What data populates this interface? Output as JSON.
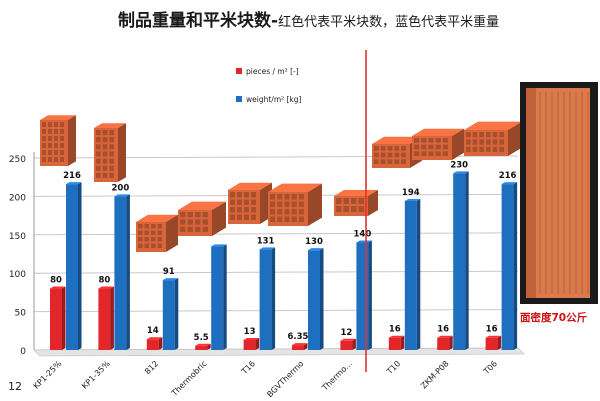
{
  "title": {
    "main": "制品重量和平米块数-",
    "sub": "红色代表平米块数，蓝色代表平米重量"
  },
  "page_number": "12",
  "note": "面密度70公斤",
  "colors": {
    "red_series": "#e3262a",
    "blue_series": "#1f6fc0",
    "divider": "#e33030",
    "brick": "#d9653a"
  },
  "chart_data": {
    "type": "bar",
    "categories": [
      "KP1-25%",
      "KP1-35%",
      "812",
      "Thermobric",
      "T16",
      "BGVThermo",
      "Thermo...",
      "T10",
      "ZKM-P08",
      "T06"
    ],
    "series": [
      {
        "name": "pieces / m² [-]",
        "values": [
          80,
          80,
          14,
          5.5,
          13,
          6.35,
          12,
          16,
          16,
          16
        ],
        "labels": [
          "80",
          "80",
          "14",
          "5.5",
          "13",
          "6.35",
          "12",
          "16",
          "16",
          "16"
        ]
      },
      {
        "name": "weight/m² [kg]",
        "values": [
          216,
          200,
          91,
          135,
          131,
          130,
          140,
          194,
          230,
          216
        ],
        "labels": [
          "216",
          "200",
          "91",
          "",
          "131",
          "130",
          "140",
          "194",
          "230",
          "216"
        ]
      }
    ],
    "yticks": [
      "0",
      "50",
      "100",
      "150",
      "200",
      "250"
    ],
    "ylim": [
      0,
      250
    ],
    "grid": true,
    "legend_position": "top-center"
  }
}
